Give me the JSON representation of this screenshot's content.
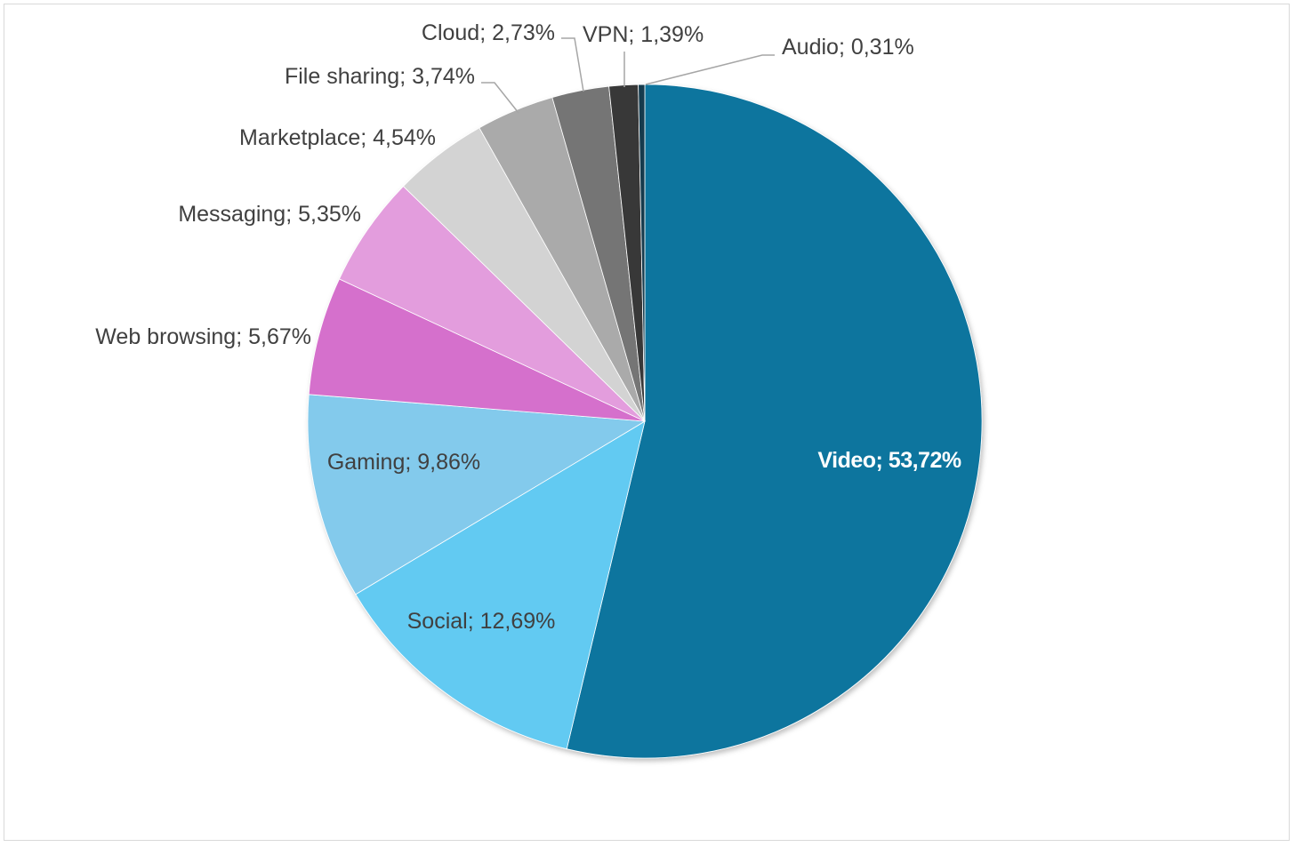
{
  "chart_data": {
    "type": "pie",
    "title": "",
    "legend": "none",
    "slices": [
      {
        "label": "Video",
        "value": 53.72,
        "display": "Video; 53,72%",
        "color": "#0E749E"
      },
      {
        "label": "Social",
        "value": 12.69,
        "display": "Social; 12,69%",
        "color": "#62CAF2"
      },
      {
        "label": "Gaming",
        "value": 9.86,
        "display": "Gaming; 9,86%",
        "color": "#83CAEC"
      },
      {
        "label": "Web browsing",
        "value": 5.67,
        "display": "Web browsing; 5,67%",
        "color": "#D56FCC"
      },
      {
        "label": "Messaging",
        "value": 5.35,
        "display": "Messaging; 5,35%",
        "color": "#E39DDD"
      },
      {
        "label": "Marketplace",
        "value": 4.54,
        "display": "Marketplace; 4,54%",
        "color": "#D3D3D3"
      },
      {
        "label": "File sharing",
        "value": 3.74,
        "display": "File sharing; 3,74%",
        "color": "#AAAAAA"
      },
      {
        "label": "Cloud",
        "value": 2.73,
        "display": "Cloud; 2,73%",
        "color": "#757575"
      },
      {
        "label": "VPN",
        "value": 1.39,
        "display": "VPN; 1,39%",
        "color": "#383838"
      },
      {
        "label": "Audio",
        "value": 0.31,
        "display": "Audio; 0,31%",
        "color": "#133A4E"
      }
    ]
  }
}
